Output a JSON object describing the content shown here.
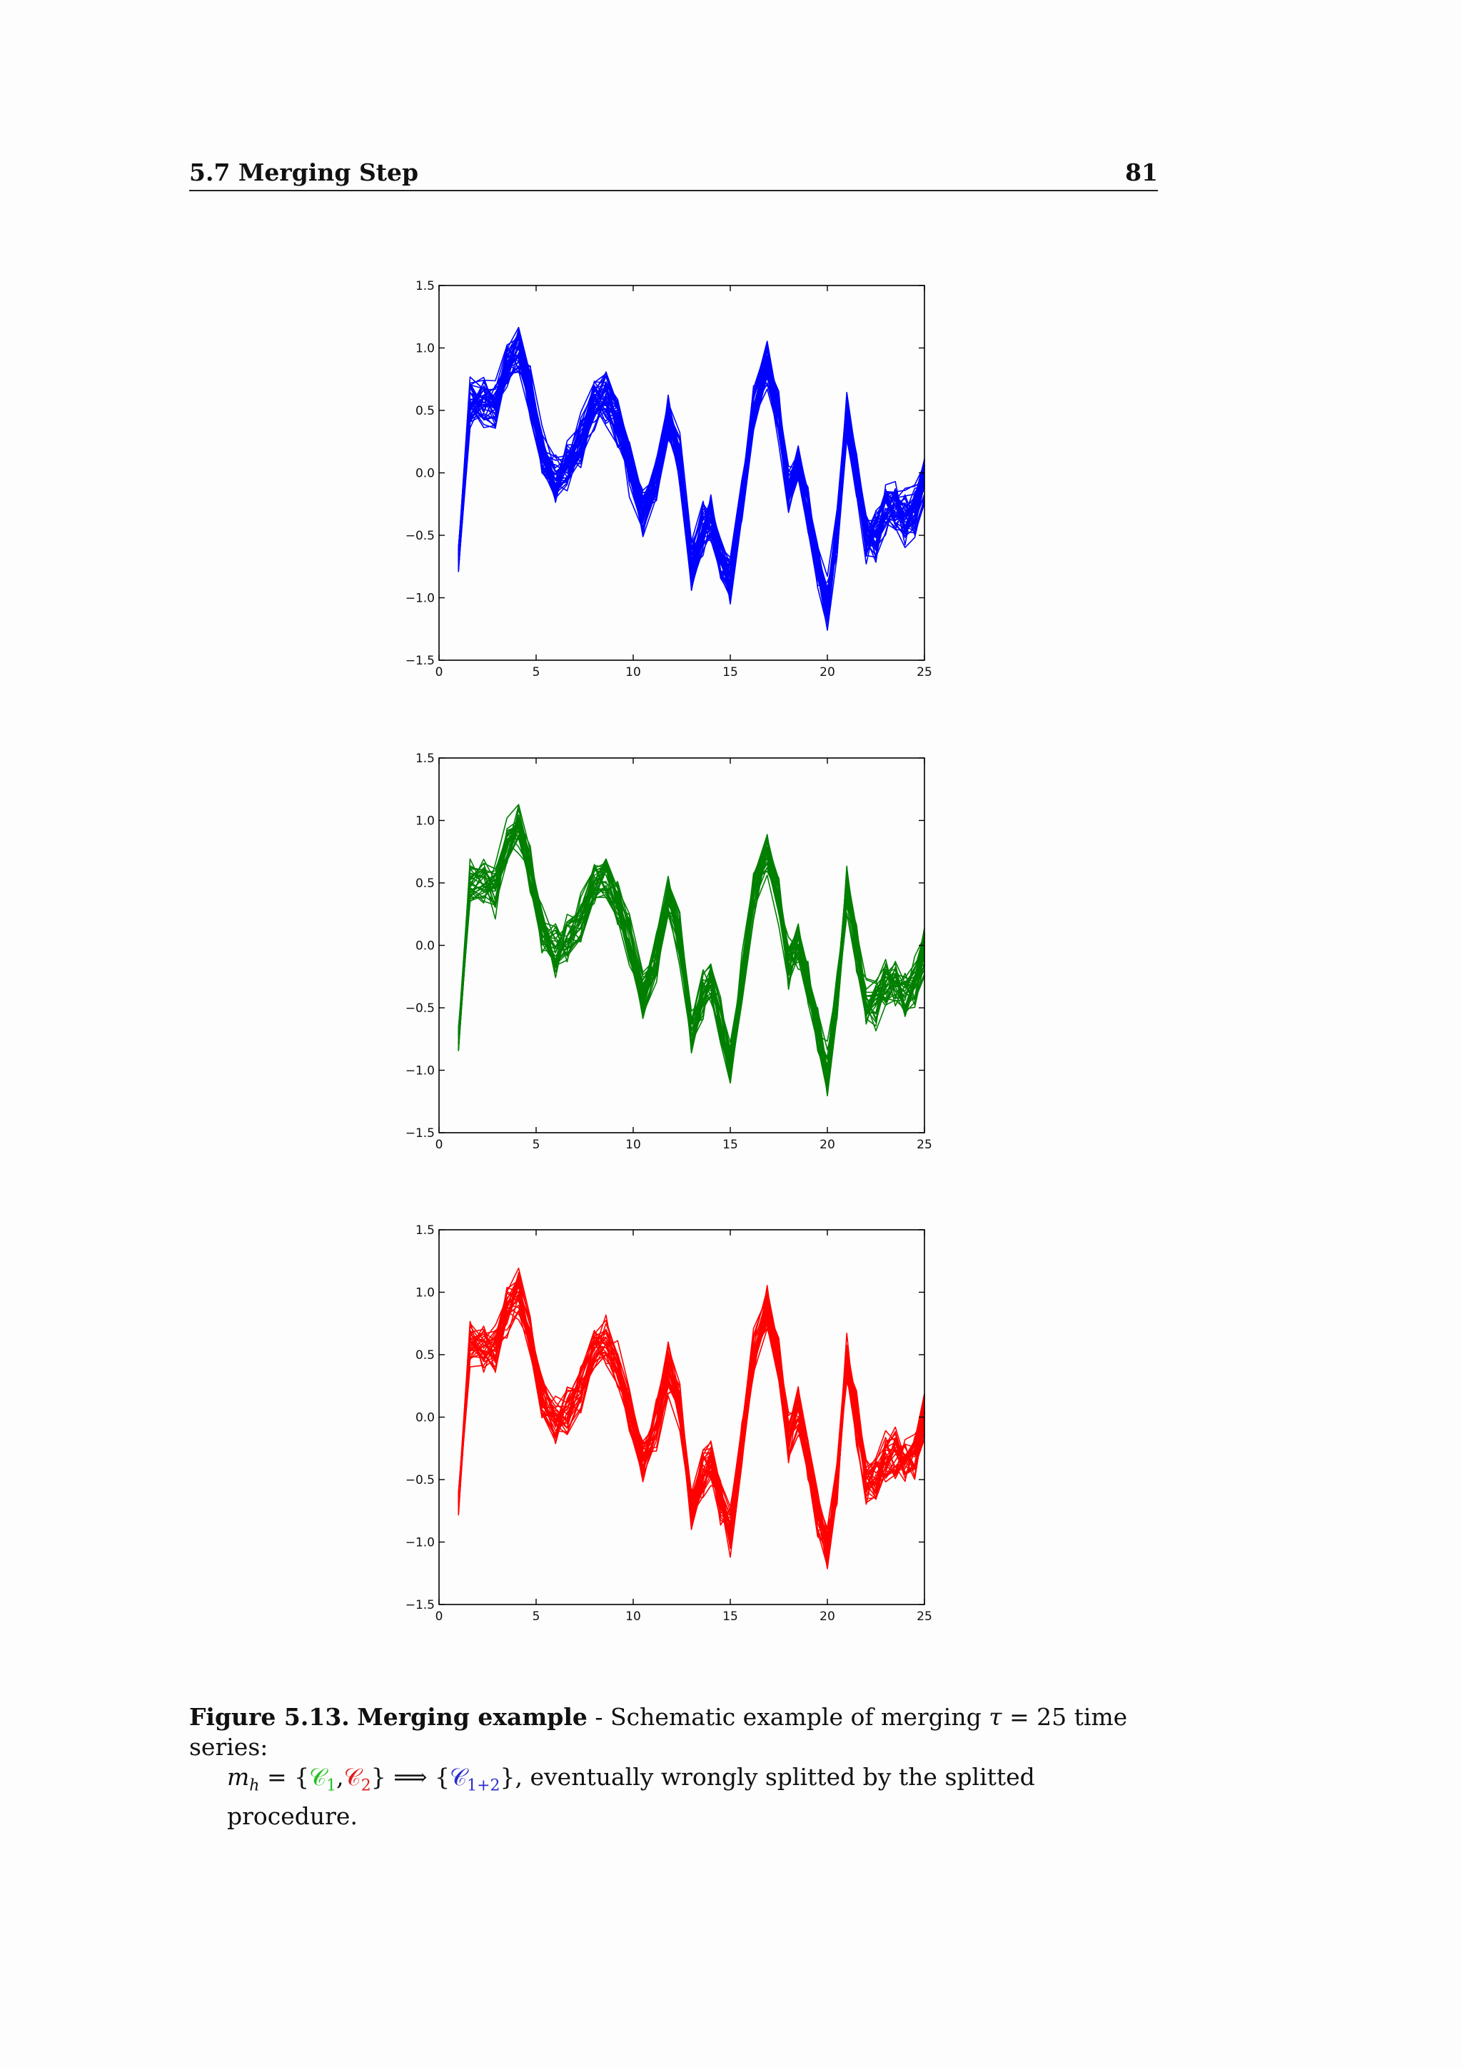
{
  "header": {
    "section": "5.7 Merging Step",
    "page_number": "81"
  },
  "caption": {
    "label": "Figure 5.13.",
    "title": "Merging example",
    "text1": " - Schematic example of merging ",
    "tau": "τ",
    "eq": " = 25 time series:",
    "m": "m",
    "m_sub": "h",
    "set_open": " = {",
    "c": "𝒞",
    "c1_sub": "1",
    "comma": ",",
    "c2_sub": "2",
    "set_close": "} ⟹ {",
    "c12_sub": "1+2",
    "text2": "}, eventually wrongly splitted by the splitted procedure."
  },
  "colors": {
    "blue": "#0000ff",
    "green": "#007f00",
    "red": "#ff0000"
  },
  "chart_data": [
    {
      "type": "line",
      "xlim": [
        0,
        25
      ],
      "ylim": [
        -1.5,
        1.5
      ],
      "xticks": [
        "0",
        "5",
        "10",
        "15",
        "20",
        "25"
      ],
      "yticks": [
        "1.5",
        "1.0",
        "0.5",
        "0.0",
        "−0.5",
        "−1.0",
        "−1.5"
      ],
      "color": "#0000ff",
      "grid": false,
      "n_series": 40,
      "centroid": {
        "x": [
          1.0,
          1.6,
          2.3,
          2.9,
          3.5,
          4.1,
          4.7,
          5.3,
          6.0,
          6.6,
          7.3,
          8.0,
          8.6,
          9.2,
          9.8,
          10.5,
          11.2,
          11.8,
          12.4,
          13.0,
          13.6,
          14.0,
          14.5,
          15.0,
          15.6,
          16.2,
          16.9,
          17.5,
          18.0,
          18.5,
          19.0,
          19.5,
          20.0,
          20.5,
          21.0,
          21.5,
          22.0,
          22.5,
          23.0,
          23.5,
          24.0,
          24.5,
          25.0
        ],
        "y": [
          -0.7,
          0.55,
          0.55,
          0.55,
          0.85,
          0.98,
          0.65,
          0.15,
          -0.05,
          0.05,
          0.25,
          0.55,
          0.62,
          0.4,
          0.05,
          -0.35,
          -0.05,
          0.45,
          0.1,
          -0.75,
          -0.45,
          -0.35,
          -0.7,
          -0.85,
          -0.2,
          0.5,
          0.85,
          0.45,
          -0.15,
          0.05,
          -0.3,
          -0.75,
          -1.05,
          -0.5,
          0.45,
          0.0,
          -0.5,
          -0.5,
          -0.3,
          -0.3,
          -0.35,
          -0.3,
          -0.05
        ]
      }
    },
    {
      "type": "line",
      "xlim": [
        0,
        25
      ],
      "ylim": [
        -1.5,
        1.5
      ],
      "xticks": [
        "0",
        "5",
        "10",
        "15",
        "20",
        "25"
      ],
      "yticks": [
        "1.5",
        "1.0",
        "0.5",
        "0.0",
        "−0.5",
        "−1.0",
        "−1.5"
      ],
      "color": "#007f00",
      "grid": false,
      "n_series": 30,
      "centroid": {
        "x": [
          1.0,
          1.6,
          2.3,
          2.9,
          3.5,
          4.1,
          4.7,
          5.3,
          6.0,
          6.6,
          7.3,
          8.0,
          8.6,
          9.2,
          9.8,
          10.5,
          11.2,
          11.8,
          12.4,
          13.0,
          13.6,
          14.0,
          14.5,
          15.0,
          15.6,
          16.2,
          16.9,
          17.5,
          18.0,
          18.5,
          19.0,
          19.5,
          20.0,
          20.5,
          21.0,
          21.5,
          22.0,
          22.5,
          23.0,
          23.5,
          24.0,
          24.5,
          25.0
        ],
        "y": [
          -0.75,
          0.5,
          0.5,
          0.45,
          0.8,
          0.95,
          0.6,
          0.15,
          -0.05,
          0.05,
          0.2,
          0.5,
          0.55,
          0.35,
          0.05,
          -0.4,
          -0.1,
          0.4,
          0.05,
          -0.7,
          -0.4,
          -0.3,
          -0.6,
          -0.95,
          -0.25,
          0.4,
          0.75,
          0.35,
          -0.15,
          0.05,
          -0.3,
          -0.7,
          -1.0,
          -0.45,
          0.45,
          0.0,
          -0.45,
          -0.45,
          -0.3,
          -0.3,
          -0.4,
          -0.3,
          -0.05
        ]
      }
    },
    {
      "type": "line",
      "xlim": [
        0,
        25
      ],
      "ylim": [
        -1.5,
        1.5
      ],
      "xticks": [
        "0",
        "5",
        "10",
        "15",
        "20",
        "25"
      ],
      "yticks": [
        "1.5",
        "1.0",
        "0.5",
        "0.0",
        "−0.5",
        "−1.0",
        "−1.5"
      ],
      "color": "#ff0000",
      "grid": false,
      "n_series": 30,
      "centroid": {
        "x": [
          1.0,
          1.6,
          2.3,
          2.9,
          3.5,
          4.1,
          4.7,
          5.3,
          6.0,
          6.6,
          7.3,
          8.0,
          8.6,
          9.2,
          9.8,
          10.5,
          11.2,
          11.8,
          12.4,
          13.0,
          13.6,
          14.0,
          14.5,
          15.0,
          15.6,
          16.2,
          16.9,
          17.5,
          18.0,
          18.5,
          19.0,
          19.5,
          20.0,
          20.5,
          21.0,
          21.5,
          22.0,
          22.5,
          23.0,
          23.5,
          24.0,
          24.5,
          25.0
        ],
        "y": [
          -0.7,
          0.6,
          0.55,
          0.55,
          0.85,
          0.98,
          0.65,
          0.15,
          -0.05,
          0.05,
          0.25,
          0.55,
          0.6,
          0.4,
          0.05,
          -0.35,
          -0.05,
          0.4,
          0.1,
          -0.75,
          -0.45,
          -0.35,
          -0.7,
          -0.9,
          -0.2,
          0.5,
          0.85,
          0.45,
          -0.15,
          0.05,
          -0.3,
          -0.75,
          -1.05,
          -0.5,
          0.45,
          0.0,
          -0.5,
          -0.5,
          -0.3,
          -0.3,
          -0.35,
          -0.3,
          0.05
        ]
      }
    }
  ]
}
